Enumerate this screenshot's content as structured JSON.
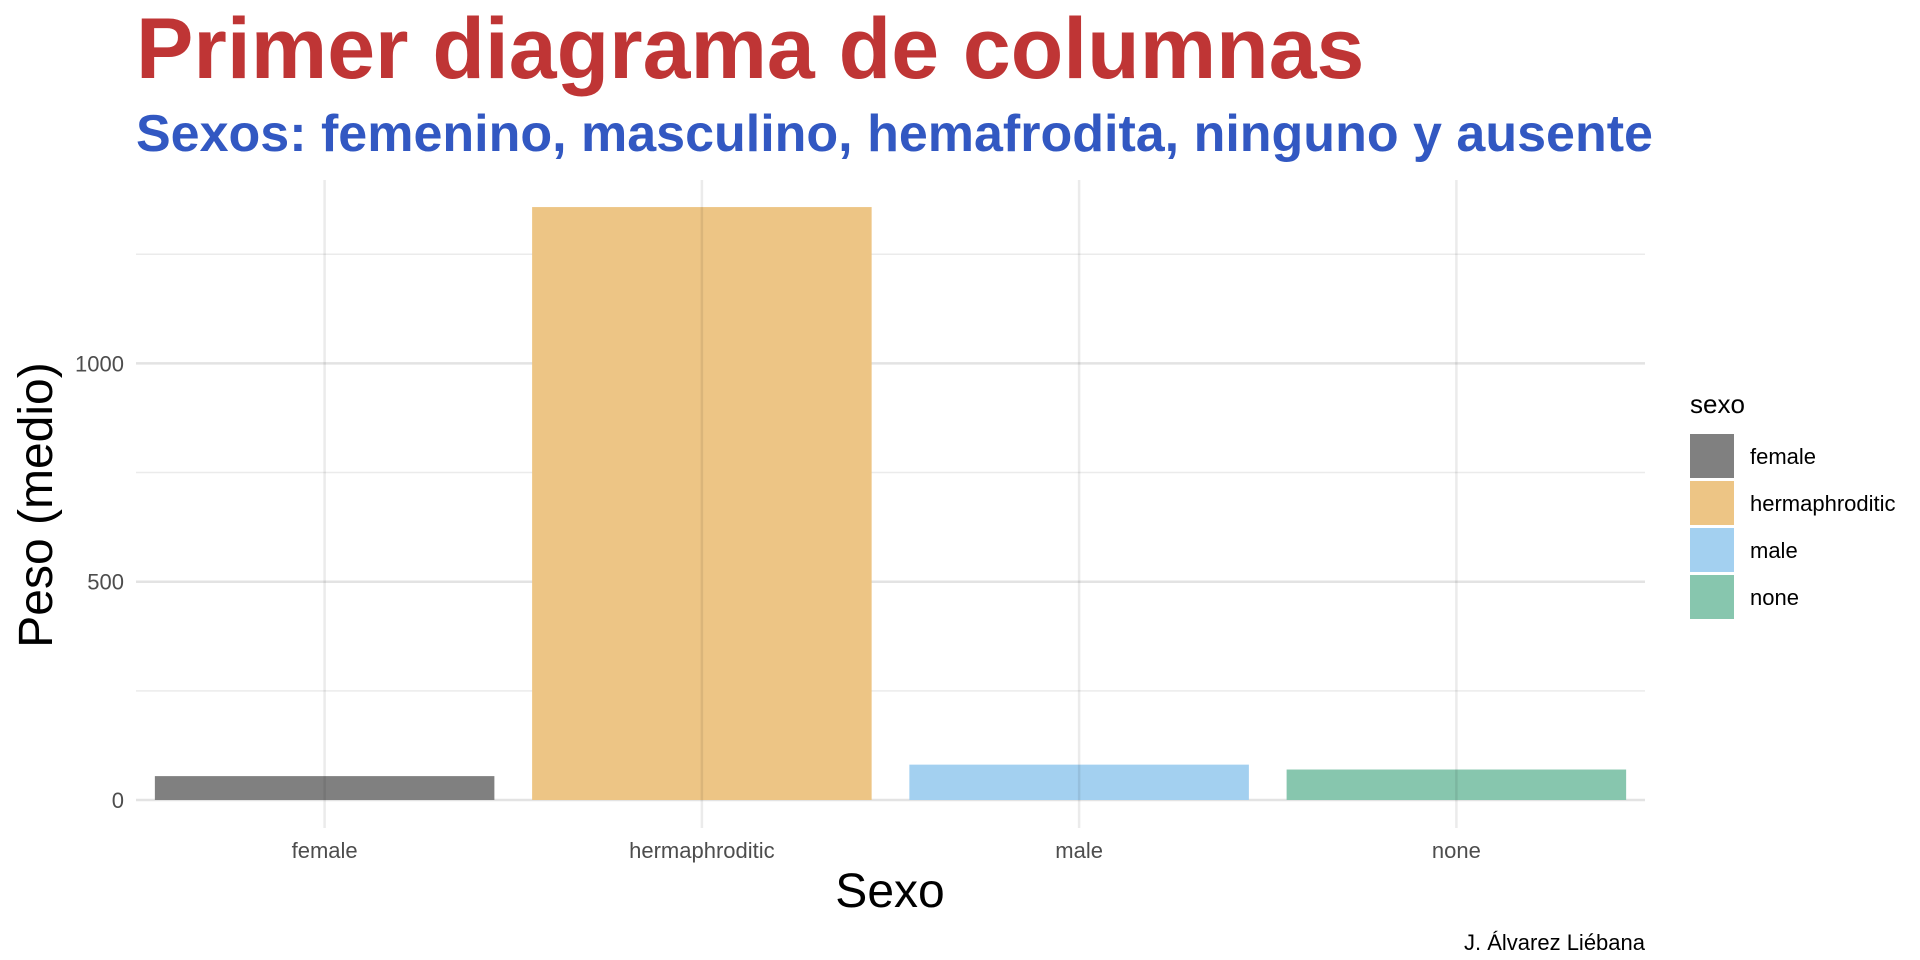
{
  "chart_data": {
    "type": "bar",
    "title": "Primer diagrama de columnas",
    "subtitle": "Sexos: femenino, masculino, hemafrodita, ninguno y ausente",
    "xlabel": "Sexo",
    "ylabel": "Peso (medio)",
    "caption": "J. Álvarez Liébana",
    "categories": [
      "female",
      "hermaphroditic",
      "male",
      "none"
    ],
    "values": [
      54.7,
      1358,
      81,
      69.8
    ],
    "colors": [
      "#808080",
      "#edc585",
      "#a3d0f0",
      "#87c6ae"
    ],
    "ylim": [
      0,
      1420
    ],
    "yticks": [
      0,
      500,
      1000
    ],
    "yticks_labels": [
      "0",
      "500",
      "1000"
    ],
    "y_minor_ticks": [
      250,
      750,
      1250
    ],
    "grid": true,
    "legend": {
      "title": "sexo",
      "position": "right",
      "entries": [
        "female",
        "hermaphroditic",
        "male",
        "none"
      ]
    },
    "title_color": "#bf3535",
    "subtitle_color": "#3258c2"
  }
}
